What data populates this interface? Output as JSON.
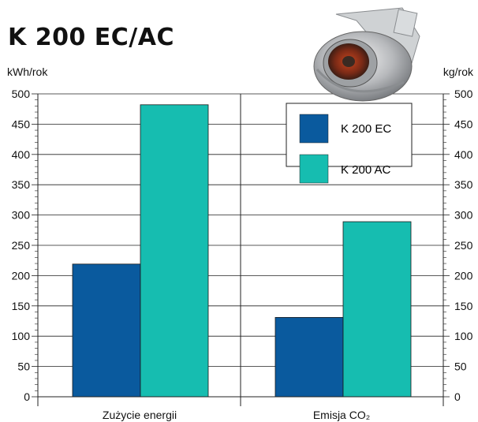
{
  "title": "K 200 EC/AC",
  "product_image": "inline-duct-fan-image",
  "chart_data": {
    "type": "bar",
    "categories": [
      "Zużycie energii",
      "Emisja CO₂"
    ],
    "series": [
      {
        "name": "K 200 EC",
        "values": [
          219,
          131
        ],
        "color": "#0a5a9e"
      },
      {
        "name": "K 200 AC",
        "values": [
          482,
          289
        ],
        "color": "#16bdb0"
      }
    ],
    "ylim": [
      0,
      500
    ],
    "y_ticks": [
      "0",
      "50",
      "100",
      "150",
      "200",
      "250",
      "300",
      "350",
      "400",
      "450",
      "500"
    ],
    "ylabel_left": "kWh/rok",
    "ylabel_right": "kg/rok",
    "grid": true,
    "legend_position": "top-right"
  }
}
